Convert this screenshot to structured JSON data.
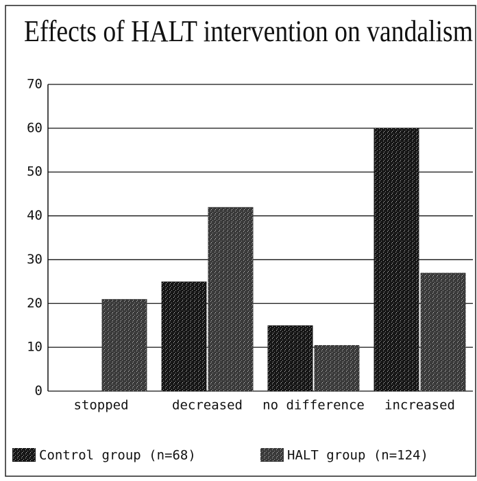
{
  "chart_data": {
    "type": "bar",
    "title": "Effects of HALT intervention on vandalism",
    "categories": [
      "stopped",
      "decreased",
      "no difference",
      "increased"
    ],
    "series": [
      {
        "name": "Control group (n=68)",
        "color": "#161616",
        "values": [
          0,
          25,
          15,
          60
        ]
      },
      {
        "name": "HALT group (n=124)",
        "color": "#3a3a3a",
        "values": [
          21,
          42,
          10.5,
          27
        ]
      }
    ],
    "ylim": [
      0,
      70
    ],
    "yticks": [
      0,
      10,
      20,
      30,
      40,
      50,
      60,
      70
    ],
    "grid": true,
    "legend": "bottom"
  }
}
